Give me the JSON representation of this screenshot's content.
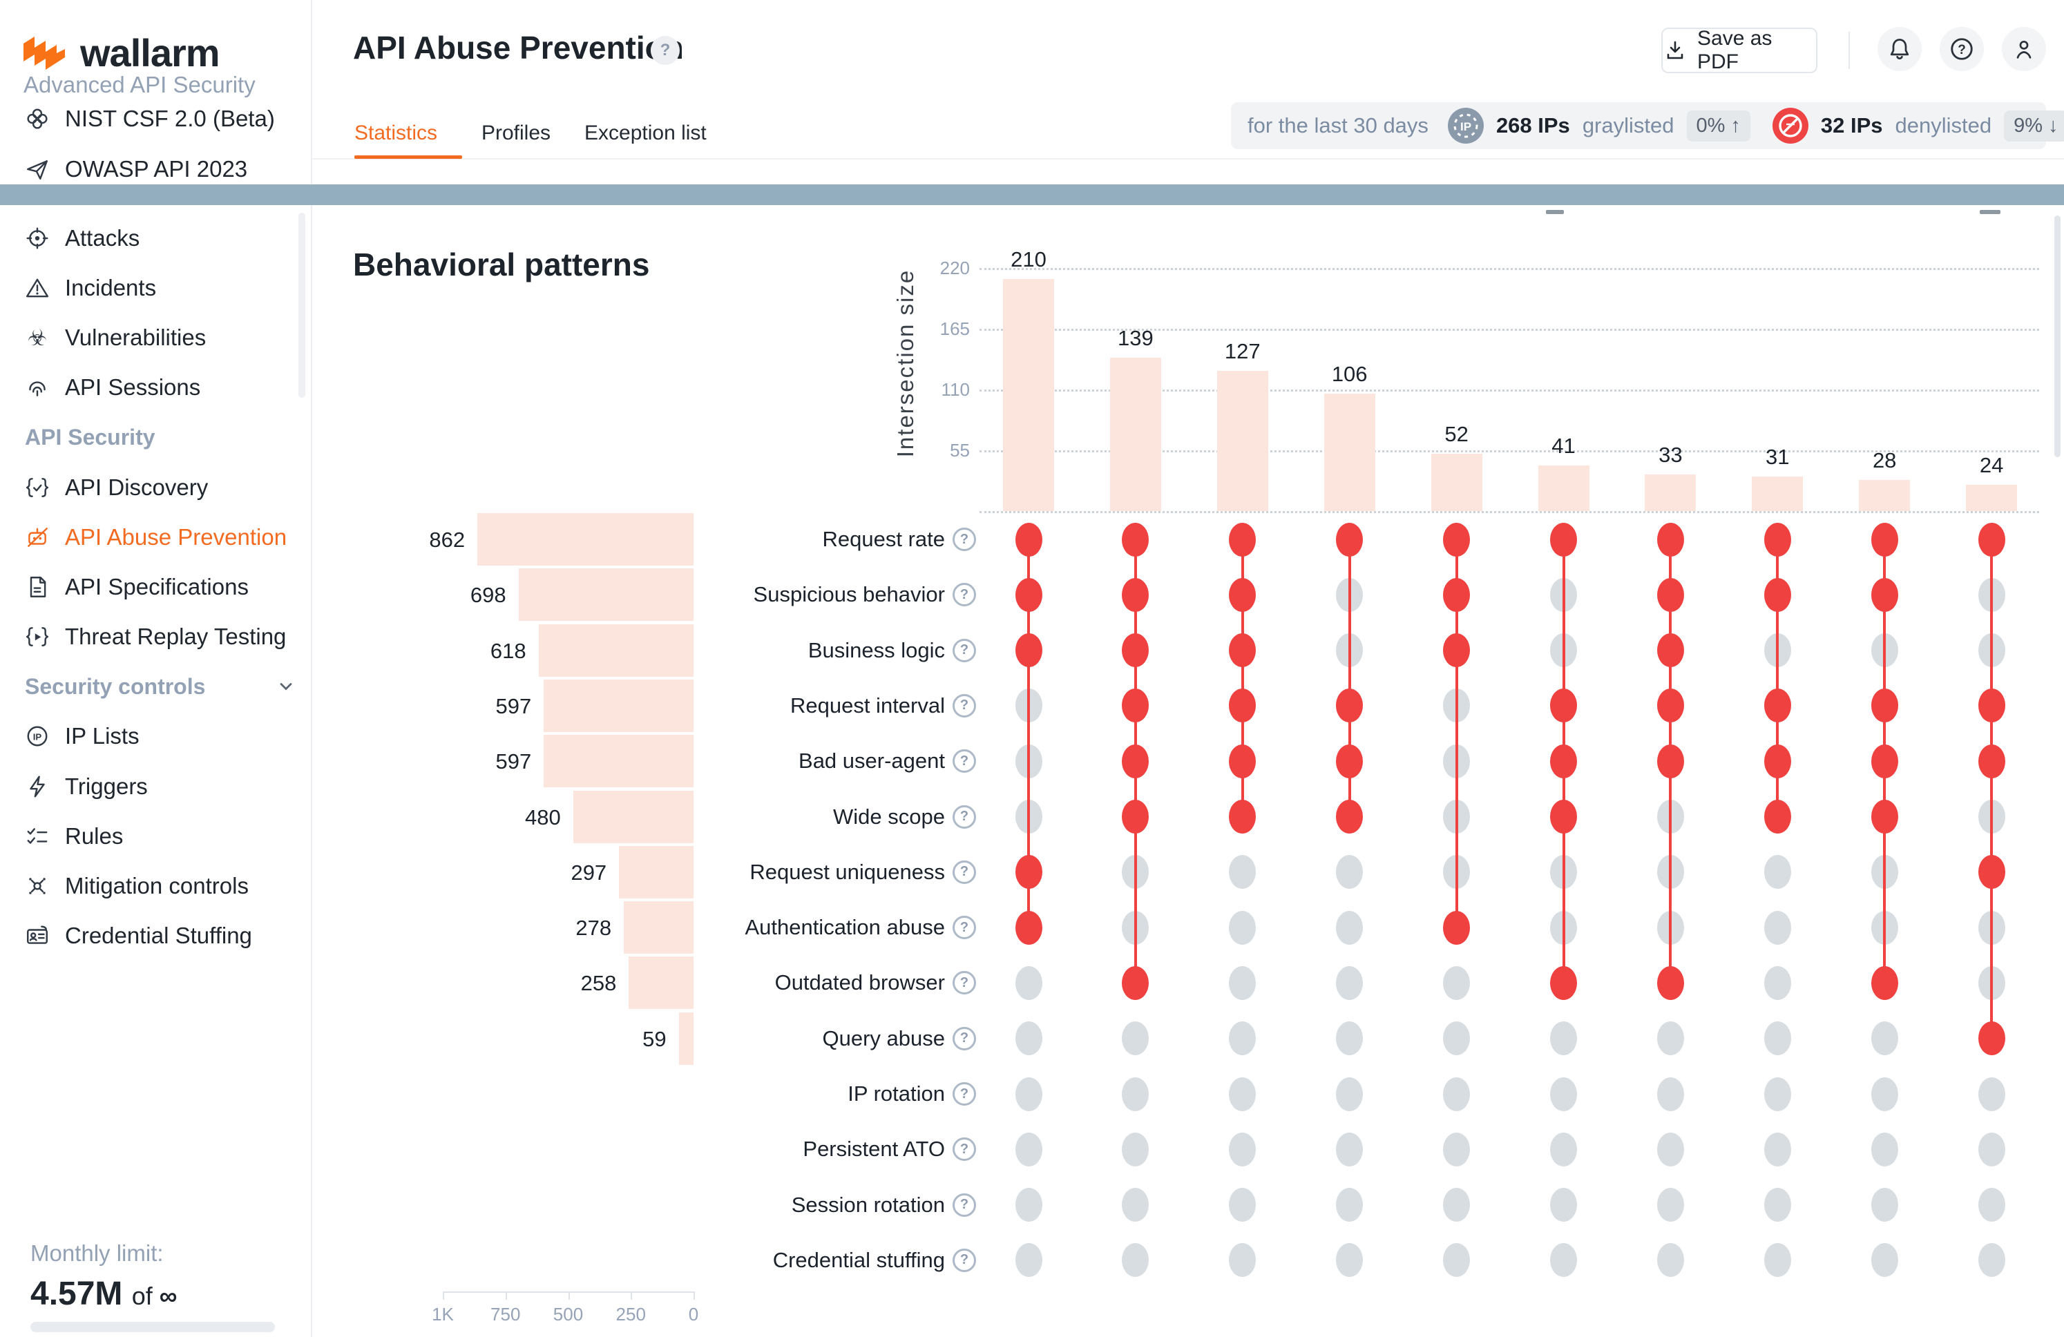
{
  "app": {
    "brand": "wallarm",
    "subtitle": "Advanced API Security"
  },
  "sidebar": {
    "top_items": [
      {
        "icon": "nist",
        "label": "NIST CSF 2.0 (Beta)"
      },
      {
        "icon": "paper-plane",
        "label": "OWASP API 2023"
      }
    ],
    "items": [
      {
        "type": "item",
        "icon": "target",
        "label": "Attacks"
      },
      {
        "type": "item",
        "icon": "warning",
        "label": "Incidents"
      },
      {
        "type": "item",
        "icon": "biohazard",
        "label": "Vulnerabilities"
      },
      {
        "type": "item",
        "icon": "fingerprint",
        "label": "API Sessions"
      },
      {
        "type": "section",
        "label": "API Security"
      },
      {
        "type": "item",
        "icon": "braces-check",
        "label": "API Discovery"
      },
      {
        "type": "item",
        "icon": "robot-blocked",
        "label": "API Abuse Prevention",
        "active": true
      },
      {
        "type": "item",
        "icon": "document",
        "label": "API Specifications"
      },
      {
        "type": "item",
        "icon": "braces-play",
        "label": "Threat Replay Testing"
      },
      {
        "type": "section",
        "label": "Security controls",
        "chevron": true
      },
      {
        "type": "item",
        "icon": "ip-circle",
        "label": "IP Lists"
      },
      {
        "type": "item",
        "icon": "lightning",
        "label": "Triggers"
      },
      {
        "type": "item",
        "icon": "checklist",
        "label": "Rules"
      },
      {
        "type": "item",
        "icon": "mitigation",
        "label": "Mitigation controls"
      },
      {
        "type": "item",
        "icon": "id-card",
        "label": "Credential Stuffing"
      }
    ],
    "monthly_limit": {
      "label": "Monthly limit:",
      "value": "4.57M",
      "of": "of",
      "infinity": "∞"
    }
  },
  "header": {
    "title": "API Abuse Prevention",
    "save_pdf_label": "Save as PDF",
    "tabs": [
      {
        "label": "Statistics",
        "active": true
      },
      {
        "label": "Profiles",
        "active": false
      },
      {
        "label": "Exception list",
        "active": false
      }
    ]
  },
  "status": {
    "period": "for the last 30 days",
    "graylisted": {
      "count": "268 IPs",
      "label": "graylisted",
      "delta": "0%",
      "direction": "up",
      "arrow": "↑"
    },
    "denylisted": {
      "count": "32 IPs",
      "label": "denylisted",
      "delta": "9%",
      "direction": "down",
      "arrow": "↓"
    }
  },
  "content": {
    "heading": "Behavioral patterns"
  },
  "chart_data": {
    "type": "upset",
    "title": "Behavioral patterns",
    "intersection_axis_label": "Intersection size",
    "intersection_ticks": [
      220,
      165,
      110,
      55
    ],
    "categories": [
      "Request rate",
      "Suspicious behavior",
      "Business logic",
      "Request interval",
      "Bad user-agent",
      "Wide scope",
      "Request uniqueness",
      "Authentication abuse",
      "Outdated browser",
      "Query abuse",
      "IP rotation",
      "Persistent ATO",
      "Session rotation",
      "Credential stuffing"
    ],
    "set_sizes": [
      862,
      698,
      618,
      597,
      597,
      480,
      297,
      278,
      258,
      59,
      null,
      null,
      null,
      null
    ],
    "set_axis_ticks": [
      {
        "label": "1K",
        "value": 1000
      },
      {
        "label": "750",
        "value": 750
      },
      {
        "label": "500",
        "value": 500
      },
      {
        "label": "250",
        "value": 250
      },
      {
        "label": "0",
        "value": 0
      }
    ],
    "intersections": [
      {
        "size": 210,
        "set_indices": [
          0,
          1,
          2,
          6,
          7
        ]
      },
      {
        "size": 139,
        "set_indices": [
          0,
          1,
          2,
          3,
          4,
          5,
          8
        ]
      },
      {
        "size": 127,
        "set_indices": [
          0,
          1,
          2,
          3,
          4,
          5
        ]
      },
      {
        "size": 106,
        "set_indices": [
          0,
          3,
          4,
          5
        ]
      },
      {
        "size": 52,
        "set_indices": [
          0,
          1,
          2,
          7
        ]
      },
      {
        "size": 41,
        "set_indices": [
          0,
          3,
          4,
          5,
          8
        ]
      },
      {
        "size": 33,
        "set_indices": [
          0,
          1,
          2,
          3,
          4,
          8
        ]
      },
      {
        "size": 31,
        "set_indices": [
          0,
          1,
          3,
          4,
          5
        ]
      },
      {
        "size": 28,
        "set_indices": [
          0,
          1,
          3,
          4,
          5,
          8
        ]
      },
      {
        "size": 24,
        "set_indices": [
          0,
          3,
          4,
          6,
          9
        ]
      }
    ]
  },
  "colors": {
    "accent_orange": "#f26b21",
    "matrix_red": "#ee4140",
    "matrix_gray": "#d8dde2",
    "bar_pink": "#fce5dc",
    "blue_bar": "#93aebf",
    "graylist_badge": "#8b9aab",
    "denylist_badge": "#ef4444"
  }
}
